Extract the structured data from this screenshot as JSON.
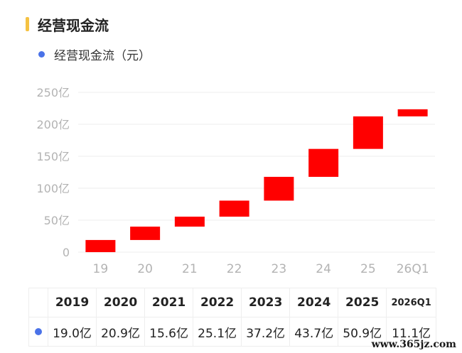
{
  "header": {
    "title": "经营现金流"
  },
  "legend": {
    "label": "经营现金流（元）"
  },
  "colors": {
    "accent": "#f5c242",
    "series": "#ff0000",
    "dot": "#4a72e8",
    "grid": "#eeeeee",
    "tick": "#b3b3b3"
  },
  "chart_data": {
    "type": "bar",
    "subtype": "waterfall",
    "categories": [
      "19",
      "20",
      "21",
      "22",
      "23",
      "24",
      "25",
      "26Q1"
    ],
    "values": [
      19.0,
      20.9,
      15.6,
      25.1,
      37.2,
      43.7,
      50.9,
      11.1
    ],
    "ranges": [
      [
        0,
        19.0
      ],
      [
        19.0,
        39.9
      ],
      [
        39.9,
        55.5
      ],
      [
        55.5,
        80.6
      ],
      [
        80.6,
        117.8
      ],
      [
        117.8,
        161.5
      ],
      [
        161.5,
        212.4
      ],
      [
        212.4,
        223.5
      ]
    ],
    "ylim": [
      0,
      250
    ],
    "yticks": [
      0,
      50,
      100,
      150,
      200,
      250
    ],
    "ytick_labels": [
      "0",
      "50亿",
      "100亿",
      "150亿",
      "200亿",
      "250亿"
    ],
    "grid": true,
    "series": [
      {
        "name": "经营现金流（元）"
      }
    ]
  },
  "table": {
    "headers": [
      "2019",
      "2020",
      "2021",
      "2022",
      "2023",
      "2024",
      "2025",
      "2026Q1"
    ],
    "values": [
      "19.0亿",
      "20.9亿",
      "15.6亿",
      "25.1亿",
      "37.2亿",
      "43.7亿",
      "50.9亿",
      "11.1亿"
    ]
  },
  "watermark": "www.365jz.com"
}
